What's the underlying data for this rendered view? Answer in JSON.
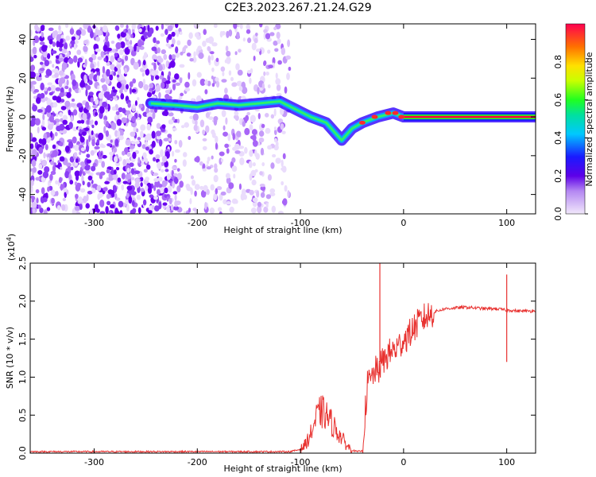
{
  "title": "C2E3.2023.267.21.24.G29",
  "chart_data": [
    {
      "type": "heatmap",
      "xlabel": "Height of straight line (km)",
      "ylabel": "Frequency (Hz)",
      "xlim": [
        -362,
        128
      ],
      "ylim": [
        -50,
        48
      ],
      "xticks": [
        -300,
        -200,
        -100,
        0,
        100
      ],
      "yticks": [
        -40,
        -20,
        0,
        20,
        40
      ],
      "colorbar": {
        "label": "Normalized spectral amplitude",
        "range": [
          0,
          1
        ],
        "ticks": [
          0.0,
          0.2,
          0.4,
          0.6,
          0.8
        ]
      },
      "ridge": [
        {
          "x": -245,
          "y": 7
        },
        {
          "x": -220,
          "y": 6
        },
        {
          "x": -200,
          "y": 5
        },
        {
          "x": -180,
          "y": 7
        },
        {
          "x": -160,
          "y": 6
        },
        {
          "x": -140,
          "y": 7
        },
        {
          "x": -120,
          "y": 8
        },
        {
          "x": -105,
          "y": 4
        },
        {
          "x": -90,
          "y": 0
        },
        {
          "x": -75,
          "y": -3
        },
        {
          "x": -60,
          "y": -12
        },
        {
          "x": -50,
          "y": -6
        },
        {
          "x": -40,
          "y": -3
        },
        {
          "x": -25,
          "y": 0
        },
        {
          "x": -10,
          "y": 2
        },
        {
          "x": 0,
          "y": 0
        },
        {
          "x": 50,
          "y": 0
        },
        {
          "x": 128,
          "y": 0
        }
      ]
    },
    {
      "type": "line",
      "xlabel": "Height of straight line (km)",
      "ylabel": "SNR (10 * v/v)",
      "yscale_label": "(x10^4)",
      "xlim": [
        -362,
        128
      ],
      "ylim": [
        0,
        2.5
      ],
      "xticks": [
        -300,
        -200,
        -100,
        0,
        100
      ],
      "yticks": [
        0.0,
        0.5,
        1.0,
        1.5,
        2.0,
        2.5
      ],
      "series": [
        {
          "color": "#e8312f",
          "x": [
            -362,
            -300,
            -200,
            -150,
            -110,
            -100,
            -95,
            -90,
            -85,
            -80,
            -75,
            -70,
            -65,
            -60,
            -55,
            -50,
            -45,
            -40,
            -38,
            -35,
            -30,
            -28,
            -25,
            -23,
            -20,
            -15,
            -10,
            -5,
            0,
            5,
            10,
            15,
            20,
            25,
            30,
            40,
            50,
            60,
            70,
            80,
            90,
            95,
            100,
            105,
            110,
            120,
            128
          ],
          "y": [
            0.02,
            0.02,
            0.02,
            0.02,
            0.02,
            0.05,
            0.12,
            0.25,
            0.45,
            0.55,
            0.5,
            0.4,
            0.3,
            0.2,
            0.1,
            0.04,
            0.02,
            0.03,
            0.4,
            0.9,
            1.0,
            1.1,
            1.05,
            1.15,
            1.2,
            1.3,
            1.35,
            1.4,
            1.5,
            1.55,
            1.65,
            1.72,
            1.78,
            1.82,
            1.86,
            1.9,
            1.91,
            1.92,
            1.91,
            1.9,
            1.9,
            1.89,
            1.88,
            1.88,
            1.87,
            1.87,
            1.87
          ]
        }
      ],
      "spikes": [
        {
          "x": -23,
          "y": 2.5
        },
        {
          "x": 100,
          "y": 2.35
        }
      ]
    }
  ]
}
